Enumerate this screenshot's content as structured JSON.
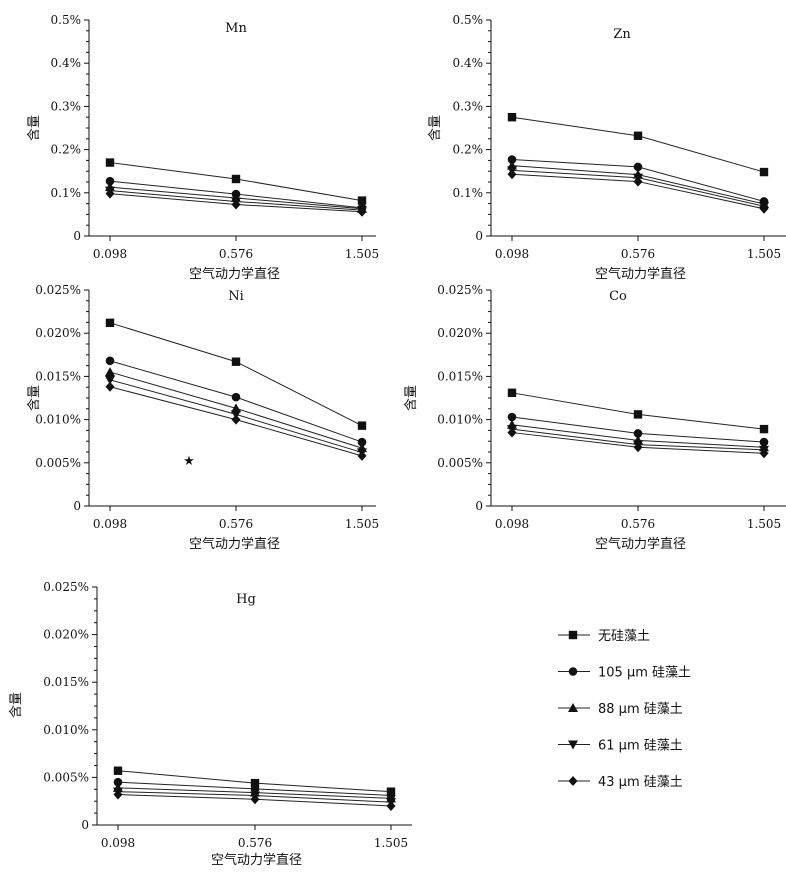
{
  "chart_data": [
    {
      "type": "line",
      "title": "Mn",
      "xlabel": "空气动力学直径",
      "ylabel": "含量",
      "categories": [
        "0.098",
        "0.576",
        "1.505"
      ],
      "ylim": [
        0,
        0.5
      ],
      "yticks": [
        "0",
        "0.1%",
        "0.2%",
        "0.3%",
        "0.4%",
        "0.5%"
      ],
      "series": [
        {
          "name": "无硅藻土",
          "marker": "square",
          "values": [
            0.17,
            0.132,
            0.082
          ]
        },
        {
          "name": "105 μm 硅藻土",
          "marker": "circle",
          "values": [
            0.127,
            0.097,
            0.065
          ]
        },
        {
          "name": "88 μm 硅藻土",
          "marker": "triangle-up",
          "values": [
            0.113,
            0.088,
            0.063
          ]
        },
        {
          "name": "61 μm 硅藻土",
          "marker": "triangle-down",
          "values": [
            0.105,
            0.08,
            0.06
          ]
        },
        {
          "name": "43 μm 硅藻土",
          "marker": "diamond",
          "values": [
            0.098,
            0.073,
            0.056
          ]
        }
      ]
    },
    {
      "type": "line",
      "title": "Zn",
      "xlabel": "空气动力学直径",
      "ylabel": "含量",
      "categories": [
        "0.098",
        "0.576",
        "1.505"
      ],
      "ylim": [
        0,
        0.5
      ],
      "yticks": [
        "0",
        "0.1%",
        "0.2%",
        "0.3%",
        "0.4%",
        "0.5%"
      ],
      "series": [
        {
          "name": "无硅藻土",
          "marker": "square",
          "values": [
            0.275,
            0.232,
            0.148
          ]
        },
        {
          "name": "105 μm 硅藻土",
          "marker": "circle",
          "values": [
            0.177,
            0.16,
            0.08
          ]
        },
        {
          "name": "88 μm 硅藻土",
          "marker": "triangle-up",
          "values": [
            0.163,
            0.142,
            0.074
          ]
        },
        {
          "name": "61 μm 硅藻土",
          "marker": "triangle-down",
          "values": [
            0.152,
            0.135,
            0.069
          ]
        },
        {
          "name": "43 μm 硅藻土",
          "marker": "diamond",
          "values": [
            0.143,
            0.126,
            0.063
          ]
        }
      ]
    },
    {
      "type": "line",
      "title": "Ni",
      "xlabel": "空气动力学直径",
      "ylabel": "含量",
      "categories": [
        "0.098",
        "0.576",
        "1.505"
      ],
      "ylim": [
        0,
        0.025
      ],
      "yticks": [
        "0",
        "0.005%",
        "0.010%",
        "0.015%",
        "0.020%",
        "0.025%"
      ],
      "annotation": "★",
      "series": [
        {
          "name": "无硅藻土",
          "marker": "square",
          "values": [
            0.0212,
            0.0167,
            0.0093
          ]
        },
        {
          "name": "105 μm 硅藻土",
          "marker": "circle",
          "values": [
            0.0168,
            0.0126,
            0.0074
          ]
        },
        {
          "name": "88 μm 硅藻土",
          "marker": "triangle-up",
          "values": [
            0.0155,
            0.0113,
            0.0067
          ]
        },
        {
          "name": "61 μm 硅藻土",
          "marker": "triangle-down",
          "values": [
            0.0146,
            0.0106,
            0.0062
          ]
        },
        {
          "name": "43 μm 硅藻土",
          "marker": "diamond",
          "values": [
            0.0138,
            0.01,
            0.0058
          ]
        }
      ]
    },
    {
      "type": "line",
      "title": "Co",
      "xlabel": "空气动力学直径",
      "ylabel": "含量",
      "categories": [
        "0.098",
        "0.576",
        "1.505"
      ],
      "ylim": [
        0,
        0.025
      ],
      "yticks": [
        "0",
        "0.005%",
        "0.010%",
        "0.015%",
        "0.020%",
        "0.025%"
      ],
      "series": [
        {
          "name": "无硅藻土",
          "marker": "square",
          "values": [
            0.0131,
            0.0106,
            0.0089
          ]
        },
        {
          "name": "105 μm 硅藻土",
          "marker": "circle",
          "values": [
            0.0103,
            0.0084,
            0.0074
          ]
        },
        {
          "name": "88 μm 硅藻土",
          "marker": "triangle-up",
          "values": [
            0.0094,
            0.0076,
            0.0068
          ]
        },
        {
          "name": "61 μm 硅藻土",
          "marker": "triangle-down",
          "values": [
            0.0089,
            0.0071,
            0.0065
          ]
        },
        {
          "name": "43 μm 硅藻土",
          "marker": "diamond",
          "values": [
            0.0085,
            0.0068,
            0.0061
          ]
        }
      ]
    },
    {
      "type": "line",
      "title": "Hg",
      "xlabel": "空气动力学直径",
      "ylabel": "含量",
      "categories": [
        "0.098",
        "0.576",
        "1.505"
      ],
      "ylim": [
        0,
        0.025
      ],
      "yticks": [
        "0",
        "0.005%",
        "0.010%",
        "0.015%",
        "0.020%",
        "0.025%"
      ],
      "series": [
        {
          "name": "无硅藻土",
          "marker": "square",
          "values": [
            0.0057,
            0.0044,
            0.0035
          ]
        },
        {
          "name": "105 μm 硅藻土",
          "marker": "circle",
          "values": [
            0.0045,
            0.0038,
            0.0031
          ]
        },
        {
          "name": "88 μm 硅藻土",
          "marker": "triangle-up",
          "values": [
            0.0039,
            0.0034,
            0.0028
          ]
        },
        {
          "name": "61 μm 硅藻土",
          "marker": "triangle-down",
          "values": [
            0.0035,
            0.0031,
            0.0024
          ]
        },
        {
          "name": "43 μm 硅藻土",
          "marker": "diamond",
          "values": [
            0.0032,
            0.0027,
            0.002
          ]
        }
      ]
    }
  ],
  "legend": [
    {
      "label": "无硅藻土",
      "marker": "square"
    },
    {
      "label": "105 μm 硅藻土",
      "marker": "circle"
    },
    {
      "label": "88 μm 硅藻土",
      "marker": "triangle-up"
    },
    {
      "label": "61 μm 硅藻土",
      "marker": "triangle-down"
    },
    {
      "label": "43 μm 硅藻土",
      "marker": "diamond"
    }
  ]
}
